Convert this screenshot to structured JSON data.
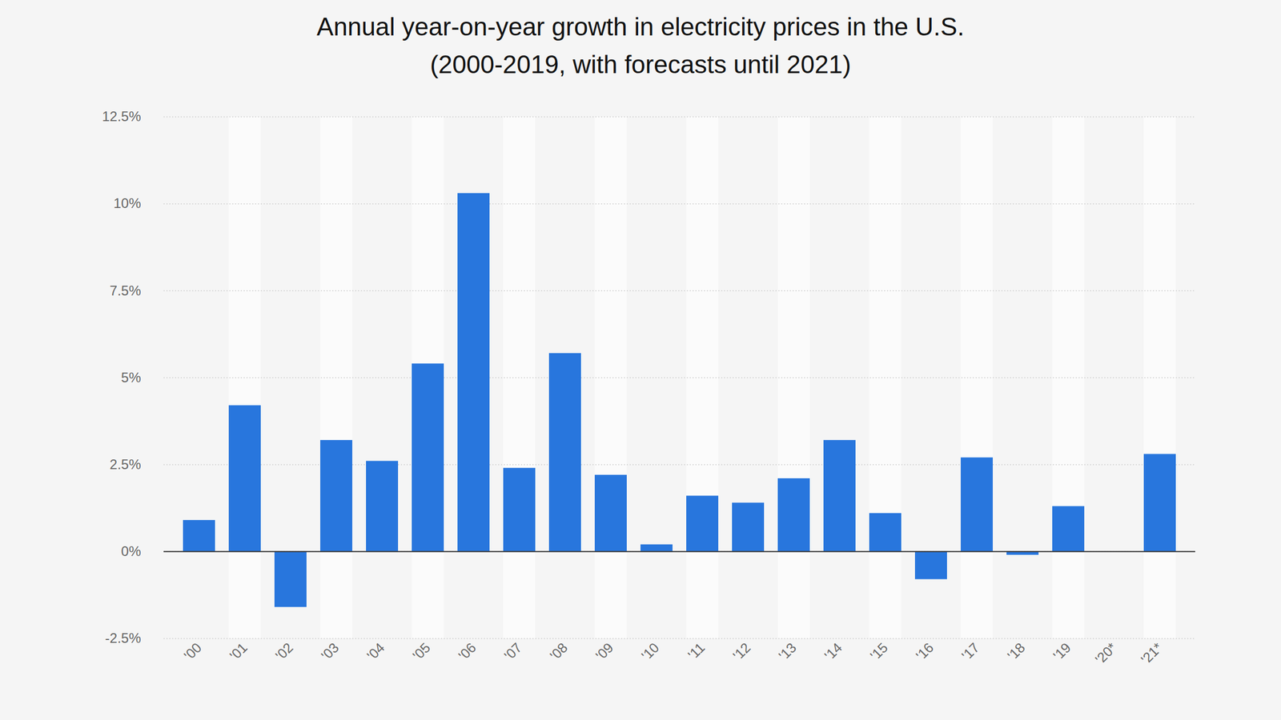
{
  "chart_data": {
    "type": "bar",
    "title": "Annual year-on-year growth in electricity prices in the U.S.",
    "subtitle": "(2000-2019, with forecasts until 2021)",
    "categories": [
      "'00",
      "'01",
      "'02",
      "'03",
      "'04",
      "'05",
      "'06",
      "'07",
      "'08",
      "'09",
      "'10",
      "'11",
      "'12",
      "'13",
      "'14",
      "'15",
      "'16",
      "'17",
      "'18",
      "'19",
      "'20*",
      "'21*"
    ],
    "values": [
      0.9,
      4.2,
      -1.6,
      3.2,
      2.6,
      5.4,
      10.3,
      2.4,
      5.7,
      2.2,
      0.2,
      1.6,
      1.4,
      2.1,
      3.2,
      1.1,
      -0.8,
      2.7,
      -0.1,
      1.3,
      0,
      2.8
    ],
    "color": "#2876dd",
    "ylim": [
      -2.5,
      12.5
    ],
    "yticks": [
      {
        "value": -2.5,
        "label": "-2.5%"
      },
      {
        "value": 0,
        "label": "0%"
      },
      {
        "value": 2.5,
        "label": "2.5%"
      },
      {
        "value": 5,
        "label": "5%"
      },
      {
        "value": 7.5,
        "label": "7.5%"
      },
      {
        "value": 10,
        "label": "10%"
      },
      {
        "value": 12.5,
        "label": "12.5%"
      }
    ],
    "grid": true
  }
}
